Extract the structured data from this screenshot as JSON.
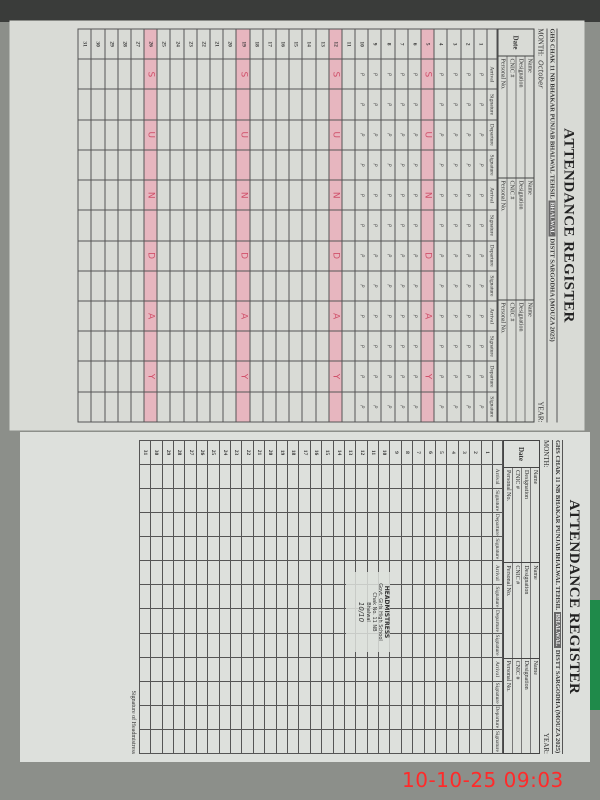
{
  "register_title": "ATTENDANCE REGISTER",
  "school_line": {
    "prefix": "GHS CHAK 11 NB BHAKAR",
    "middle": "PUNJAB BHALWAL TEHSIL",
    "tehsil": "BHALWAL",
    "suffix": "DISTT SARGODHA (MOUZA 2025)"
  },
  "month_label": "MONTH:",
  "year_label": "YEAR:",
  "date_header": "Date",
  "field_labels": [
    "Name",
    "Designation",
    "CNIC #",
    "Personal No."
  ],
  "column_headers": [
    "Arrival",
    "Signature",
    "Departure",
    "Signature"
  ],
  "days": [
    1,
    2,
    3,
    4,
    5,
    6,
    7,
    8,
    9,
    10,
    11,
    12,
    13,
    14,
    15,
    16,
    17,
    18,
    19,
    20,
    21,
    22,
    23,
    24,
    25,
    26,
    27,
    28,
    29,
    30,
    31
  ],
  "sheet1": {
    "month_value": "October",
    "sunday_days": [
      5,
      12,
      19,
      26
    ],
    "sunday_text": "SUNDAY",
    "present_through_day": 10,
    "mark_text": "P"
  },
  "sheet2": {
    "month_value": "",
    "stamp": {
      "line1": "HEADMISTRESS",
      "line2": "Govt. Girls High School",
      "line3": "Chak No. 11 NB",
      "line4": "Bhalwal"
    },
    "stamp_date": "10/10"
  },
  "signature_label": "Signature of Headmistress",
  "timestamp": "10-10-25  09:03",
  "colors": {
    "sunday_highlight": "#e7b6bf",
    "sunday_letters": "#d0506a",
    "timestamp": "#ff2a2a"
  }
}
